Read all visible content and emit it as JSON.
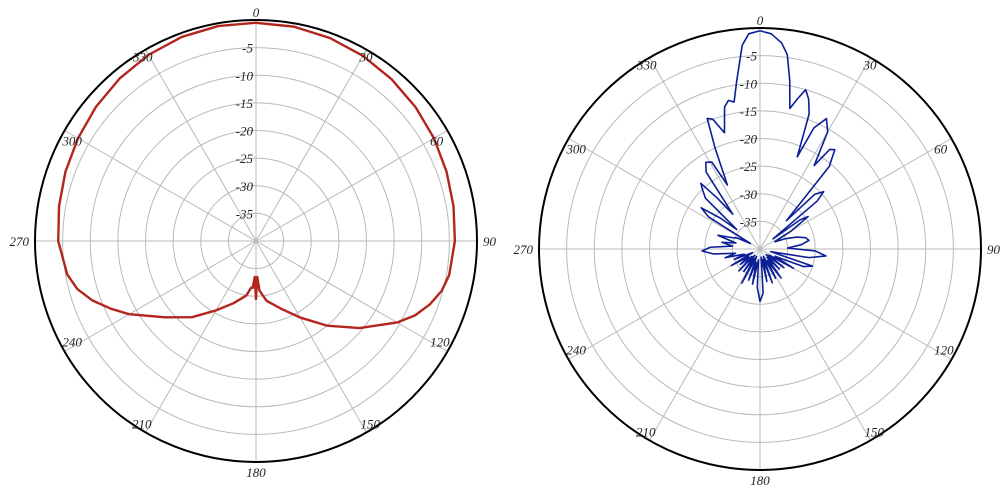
{
  "chart_data": [
    {
      "type": "polar-line",
      "title": "",
      "angle_unit": "degrees",
      "angle_zero": "top",
      "angle_direction": "clockwise",
      "angle_tick_labels": [
        "0",
        "30",
        "60",
        "90",
        "120",
        "150",
        "180",
        "210",
        "240",
        "270",
        "300",
        "330"
      ],
      "radial_tick_labels": [
        "-5",
        "-10",
        "-15",
        "-20",
        "-25",
        "-30",
        "-35"
      ],
      "rlim": [
        -40,
        0
      ],
      "grid": true,
      "line_color": "#b3261e",
      "series": [
        {
          "angles": [
            0,
            10,
            20,
            30,
            40,
            50,
            60,
            70,
            80,
            90,
            100,
            105,
            110,
            115,
            120,
            130,
            140,
            150,
            160,
            170,
            176,
            178,
            180,
            182,
            184,
            186,
            190,
            200,
            210,
            220,
            230,
            240,
            245,
            250,
            255,
            260,
            270,
            280,
            290,
            300,
            310,
            320,
            330,
            340,
            350,
            360
          ],
          "values": [
            -0.5,
            -0.6,
            -0.9,
            -1.3,
            -1.8,
            -2.3,
            -2.8,
            -3.3,
            -3.7,
            -4.0,
            -4.5,
            -5.2,
            -6.5,
            -8.2,
            -10.5,
            -15.5,
            -20.0,
            -24.0,
            -27.0,
            -29.0,
            -31.0,
            -33.5,
            -29.5,
            -33.5,
            -31.5,
            -31.5,
            -30.0,
            -28.0,
            -25.5,
            -22.0,
            -18.5,
            -13.5,
            -11.0,
            -8.5,
            -6.5,
            -5.3,
            -4.2,
            -3.8,
            -3.3,
            -2.8,
            -2.2,
            -1.6,
            -1.1,
            -0.7,
            -0.5,
            -0.5
          ]
        }
      ]
    },
    {
      "type": "polar-line",
      "title": "",
      "angle_unit": "degrees",
      "angle_zero": "top",
      "angle_direction": "clockwise",
      "angle_tick_labels": [
        "0",
        "30",
        "60",
        "90",
        "120",
        "150",
        "180",
        "210",
        "240",
        "270",
        "300",
        "330"
      ],
      "radial_tick_labels": [
        "-5",
        "-10",
        "-15",
        "-20",
        "-25",
        "-30",
        "-35"
      ],
      "rlim": [
        -40,
        0
      ],
      "grid": true,
      "line_color": "#0c1f96",
      "series": [
        {
          "angles": [
            0,
            3,
            6,
            8,
            10,
            12,
            14,
            16,
            18,
            20,
            22,
            24,
            27,
            30,
            33,
            35,
            37,
            40,
            43,
            45,
            48,
            50,
            52,
            54,
            56,
            60,
            64,
            68,
            72,
            76,
            80,
            84,
            88,
            92,
            96,
            100,
            104,
            108,
            112,
            116,
            120,
            124,
            128,
            132,
            136,
            140,
            144,
            148,
            152,
            156,
            160,
            164,
            168,
            172,
            176,
            180,
            184,
            188,
            192,
            196,
            200,
            204,
            208,
            212,
            216,
            220,
            224,
            228,
            232,
            236,
            240,
            244,
            248,
            252,
            256,
            260,
            264,
            268,
            272,
            276,
            280,
            284,
            288,
            292,
            296,
            300,
            302,
            305,
            308,
            310,
            313,
            316,
            318,
            320,
            322,
            325,
            328,
            331,
            333,
            336,
            338,
            340,
            343,
            346,
            348,
            350,
            352,
            355,
            357,
            360
          ],
          "values": [
            -0.5,
            -1.0,
            -2.5,
            -4.5,
            -9.0,
            -14.0,
            -12.0,
            -10.0,
            -11.5,
            -14.0,
            -22.0,
            -16.0,
            -13.5,
            -15.5,
            -22.0,
            -18.0,
            -17.5,
            -20.5,
            -33.0,
            -26.0,
            -24.5,
            -26.5,
            -37.0,
            -31.0,
            -29.5,
            -33.5,
            -37.0,
            -35.0,
            -33.0,
            -31.5,
            -31.0,
            -32.5,
            -35.0,
            -30.0,
            -28.0,
            -31.0,
            -38.0,
            -30.0,
            -31.5,
            -37.0,
            -33.0,
            -38.0,
            -34.5,
            -38.5,
            -35.0,
            -38.0,
            -33.5,
            -37.5,
            -34.0,
            -38.5,
            -33.5,
            -38.0,
            -34.0,
            -38.5,
            -32.0,
            -30.5,
            -33.0,
            -38.0,
            -33.5,
            -37.5,
            -34.0,
            -38.5,
            -33.0,
            -38.0,
            -35.0,
            -38.5,
            -34.5,
            -38.0,
            -35.5,
            -37.5,
            -34.0,
            -38.5,
            -35.0,
            -37.0,
            -33.5,
            -35.5,
            -31.5,
            -29.5,
            -31.0,
            -35.0,
            -33.0,
            -35.5,
            -32.0,
            -34.5,
            -35.5,
            -38.0,
            -29.0,
            -27.0,
            -31.0,
            -34.5,
            -26.5,
            -25.0,
            -24.0,
            -28.0,
            -32.0,
            -23.0,
            -21.5,
            -22.0,
            -27.0,
            -20.0,
            -14.5,
            -15.0,
            -18.0,
            -13.5,
            -12.5,
            -13.0,
            -9.5,
            -3.0,
            -1.0,
            -0.5
          ]
        }
      ]
    }
  ]
}
